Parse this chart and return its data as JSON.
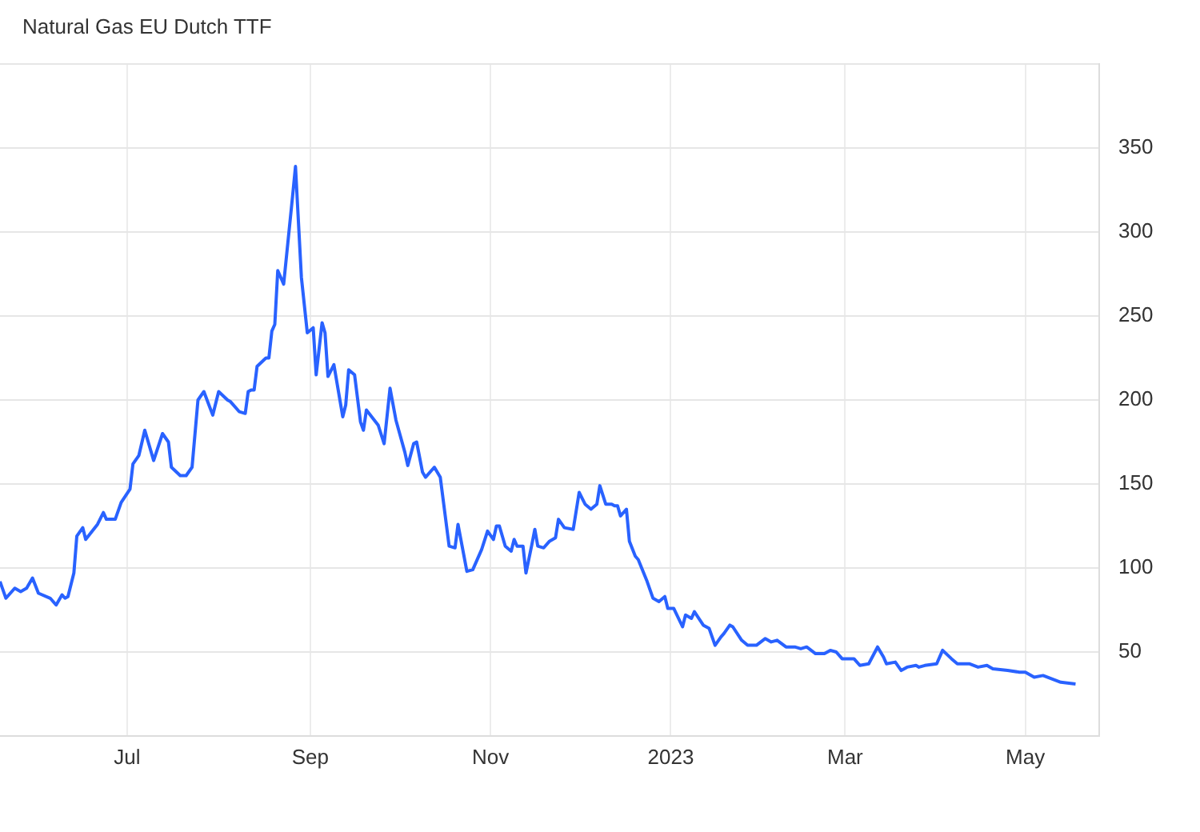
{
  "chart_data": {
    "type": "line",
    "title": "Natural Gas EU Dutch TTF",
    "x": [
      "2022-05-19",
      "2022-05-21",
      "2022-05-24",
      "2022-05-26",
      "2022-05-28",
      "2022-05-30",
      "2022-06-01",
      "2022-06-05",
      "2022-06-07",
      "2022-06-09",
      "2022-06-10",
      "2022-06-11",
      "2022-06-13",
      "2022-06-14",
      "2022-06-16",
      "2022-06-17",
      "2022-06-21",
      "2022-06-23",
      "2022-06-24",
      "2022-06-27",
      "2022-06-29",
      "2022-07-02",
      "2022-07-03",
      "2022-07-05",
      "2022-07-07",
      "2022-07-10",
      "2022-07-13",
      "2022-07-15",
      "2022-07-16",
      "2022-07-19",
      "2022-07-21",
      "2022-07-23",
      "2022-07-25",
      "2022-07-27",
      "2022-07-30",
      "2022-08-01",
      "2022-08-04",
      "2022-08-05",
      "2022-08-08",
      "2022-08-10",
      "2022-08-11",
      "2022-08-12",
      "2022-08-13",
      "2022-08-14",
      "2022-08-17",
      "2022-08-18",
      "2022-08-19",
      "2022-08-20",
      "2022-08-21",
      "2022-08-23",
      "2022-08-26",
      "2022-08-27",
      "2022-08-29",
      "2022-08-31",
      "2022-09-02",
      "2022-09-03",
      "2022-09-05",
      "2022-09-06",
      "2022-09-07",
      "2022-09-09",
      "2022-09-12",
      "2022-09-13",
      "2022-09-14",
      "2022-09-16",
      "2022-09-18",
      "2022-09-19",
      "2022-09-20",
      "2022-09-24",
      "2022-09-26",
      "2022-09-28",
      "2022-09-30",
      "2022-10-03",
      "2022-10-04",
      "2022-10-06",
      "2022-10-07",
      "2022-10-09",
      "2022-10-10",
      "2022-10-13",
      "2022-10-15",
      "2022-10-18",
      "2022-10-20",
      "2022-10-21",
      "2022-10-24",
      "2022-10-26",
      "2022-10-29",
      "2022-10-31",
      "2022-11-02",
      "2022-11-03",
      "2022-11-04",
      "2022-11-06",
      "2022-11-08",
      "2022-11-09",
      "2022-11-10",
      "2022-11-12",
      "2022-11-13",
      "2022-11-15",
      "2022-11-16",
      "2022-11-17",
      "2022-11-19",
      "2022-11-21",
      "2022-11-23",
      "2022-11-24",
      "2022-11-26",
      "2022-11-29",
      "2022-12-01",
      "2022-12-03",
      "2022-12-05",
      "2022-12-07",
      "2022-12-08",
      "2022-12-10",
      "2022-12-12",
      "2022-12-13",
      "2022-12-14",
      "2022-12-15",
      "2022-12-17",
      "2022-12-18",
      "2022-12-20",
      "2022-12-21",
      "2022-12-24",
      "2022-12-26",
      "2022-12-28",
      "2022-12-30",
      "2022-12-31",
      "2023-01-02",
      "2023-01-05",
      "2023-01-06",
      "2023-01-08",
      "2023-01-09",
      "2023-01-12",
      "2023-01-14",
      "2023-01-16",
      "2023-01-18",
      "2023-01-19",
      "2023-01-21",
      "2023-01-22",
      "2023-01-25",
      "2023-01-27",
      "2023-01-30",
      "2023-02-02",
      "2023-02-04",
      "2023-02-06",
      "2023-02-09",
      "2023-02-12",
      "2023-02-14",
      "2023-02-16",
      "2023-02-19",
      "2023-02-22",
      "2023-02-24",
      "2023-02-26",
      "2023-02-28",
      "2023-03-04",
      "2023-03-06",
      "2023-03-09",
      "2023-03-12",
      "2023-03-14",
      "2023-03-15",
      "2023-03-18",
      "2023-03-20",
      "2023-03-22",
      "2023-03-25",
      "2023-03-26",
      "2023-03-28",
      "2023-04-01",
      "2023-04-03",
      "2023-04-06",
      "2023-04-08",
      "2023-04-12",
      "2023-04-15",
      "2023-04-18",
      "2023-04-20",
      "2023-04-25",
      "2023-04-29",
      "2023-05-01",
      "2023-05-04",
      "2023-05-07",
      "2023-05-10",
      "2023-05-13",
      "2023-05-18"
    ],
    "series": [
      {
        "color": "#2962ff",
        "values": [
          92,
          82,
          88,
          86,
          88,
          94,
          85,
          82,
          78,
          84,
          82,
          83,
          97,
          119,
          124,
          117,
          126,
          133,
          129,
          129,
          139,
          147,
          162,
          167,
          182,
          164,
          180,
          175,
          160,
          155,
          155,
          160,
          200,
          205,
          191,
          205,
          200,
          199,
          193,
          192,
          205,
          206,
          206,
          220,
          225,
          225,
          241,
          245,
          277,
          269,
          321,
          339,
          273,
          240,
          243,
          215,
          246,
          240,
          214,
          221,
          190,
          197,
          218,
          215,
          187,
          182,
          194,
          185,
          174,
          207,
          188,
          169,
          161,
          174,
          175,
          157,
          154,
          160,
          154,
          113,
          112,
          126,
          98,
          99,
          111,
          122,
          117,
          125,
          125,
          113,
          110,
          117,
          113,
          113,
          97,
          114,
          123,
          113,
          112,
          116,
          118,
          129,
          124,
          123,
          145,
          138,
          135,
          138,
          149,
          138,
          138,
          137,
          137,
          131,
          135,
          116,
          107,
          105,
          92,
          82,
          80,
          83,
          76,
          76,
          65,
          72,
          70,
          74,
          66,
          64,
          54,
          59,
          61,
          66,
          65,
          57,
          54,
          54,
          58,
          56,
          57,
          53,
          53,
          52,
          53,
          49,
          49,
          51,
          50,
          46,
          46,
          42,
          43,
          53,
          47,
          43,
          44,
          39,
          41,
          42,
          41,
          42,
          43,
          51,
          46,
          43,
          43,
          41,
          42,
          40,
          39,
          38,
          38,
          35,
          36,
          34,
          32,
          31
        ]
      }
    ],
    "xlim": [
      "2022-05-19",
      "2023-05-26"
    ],
    "xticks": [
      {
        "value": "2022-07-01",
        "label": "Jul"
      },
      {
        "value": "2022-09-01",
        "label": "Sep"
      },
      {
        "value": "2022-11-01",
        "label": "Nov"
      },
      {
        "value": "2023-01-01",
        "label": "2023"
      },
      {
        "value": "2023-03-01",
        "label": "Mar"
      },
      {
        "value": "2023-05-01",
        "label": "May"
      }
    ],
    "ylim": [
      0,
      400
    ],
    "yticks": [
      50,
      100,
      150,
      200,
      250,
      300,
      350,
      {
        "value": 400,
        "label": null
      }
    ],
    "grid": true,
    "marker": "none",
    "line_style": "solid"
  }
}
